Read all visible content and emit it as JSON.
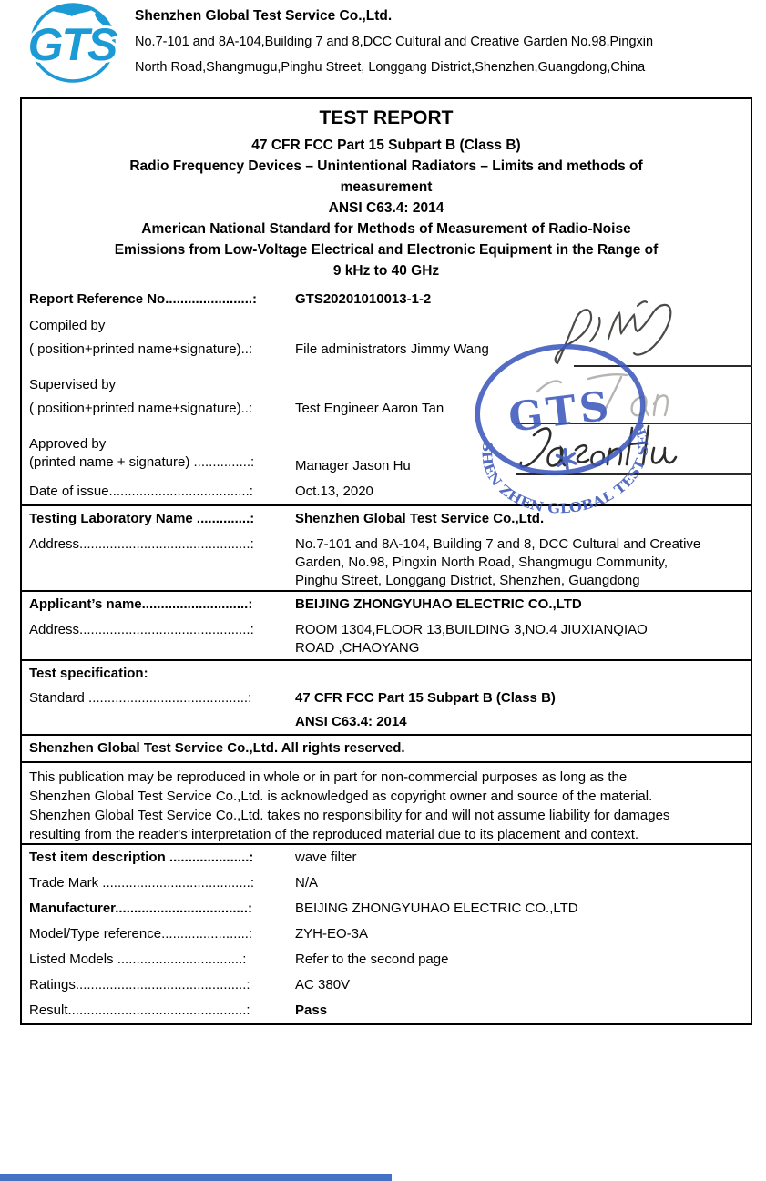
{
  "header": {
    "company": "Shenzhen Global Test Service Co.,Ltd.",
    "address_line1": "No.7-101 and 8A-104,Building 7 and 8,DCC Cultural and Creative Garden No.98,Pingxin",
    "address_line2": "North Road,Shangmugu,Pinghu Street, Longgang District,Shenzhen,Guangdong,China",
    "logo_text": "GTS",
    "logo_color": "#1b9ad6"
  },
  "title_block": {
    "main": "TEST REPORT",
    "sub_lines": [
      "47 CFR FCC Part 15 Subpart B (Class B)",
      "Radio Frequency Devices – Unintentional Radiators – Limits and methods of",
      "measurement",
      "ANSI C63.4: 2014",
      "American National Standard for Methods of Measurement of Radio-Noise",
      "Emissions from Low-Voltage Electrical and Electronic Equipment in the Range of",
      "9 kHz to 40 GHz"
    ]
  },
  "fields": [
    {
      "id": "report-reference-no",
      "label": "Report Reference No.......................:",
      "value": "GTS20201010013-1-2",
      "lb": true,
      "vb": true
    },
    {
      "id": "compiled-by",
      "label": "Compiled by",
      "label2": "( position+printed name+signature)..:",
      "value": "File administrators Jimmy Wang",
      "cls": "sig65"
    },
    {
      "id": "supervised-by",
      "label": "Supervised by",
      "label2": "( position+printed name+signature)..:",
      "value": "Test Engineer  Aaron Tan",
      "cls": "sig65"
    },
    {
      "id": "approved-by",
      "label": "Approved by",
      "label2": "(printed name + signature) ...............:",
      "value": "Manager Jason Hu",
      "cls": "sig53"
    },
    {
      "id": "date-of-issue",
      "label": "Date of issue.....................................:",
      "value": "Oct.13, 2020"
    },
    {
      "id": "testing-laboratory-name",
      "label": "Testing Laboratory Name ..............:",
      "value": "Shenzhen Global Test Service Co.,Ltd.",
      "lb": true,
      "vb": true,
      "rule": true
    },
    {
      "id": "laboratory-address",
      "label": "Address.............................................:",
      "value": [
        "No.7-101 and 8A-104, Building 7 and 8, DCC Cultural and Creative",
        "Garden, No.98, Pingxin North Road, Shangmugu Community,",
        "Pinghu Street, Longgang District, Shenzhen, Guangdong"
      ],
      "cls": "h64"
    },
    {
      "id": "applicant-name",
      "label": "Applicant’s name............................:",
      "value": "BEIJING ZHONGYUHAO ELECTRIC CO.,LTD",
      "lb": true,
      "vb": true,
      "rule": true
    },
    {
      "id": "applicant-address",
      "label": "Address.............................................:",
      "value": [
        "ROOM 1304,FLOOR 13,BUILDING 3,NO.4 JIUXIANQIAO",
        "ROAD ,CHAOYANG"
      ],
      "cls": "h46"
    },
    {
      "id": "test-specification",
      "label": "Test specification:",
      "value": "",
      "lb": true,
      "rule": true
    },
    {
      "id": "standard",
      "label": "Standard ..........................................:",
      "value": [
        "47 CFR FCC Part 15 Subpart B (Class B)",
        "ANSI C63.4: 2014"
      ],
      "vb": true,
      "cls": "h52"
    },
    {
      "id": "rights-notice",
      "full": true,
      "bold": true,
      "rule": true,
      "text": "Shenzhen Global Test Service Co.,Ltd. All rights reserved."
    },
    {
      "id": "copyright-notice",
      "full": true,
      "rule": true,
      "cls": "h90",
      "lines": [
        "This publication may be reproduced in whole or in part for non-commercial purposes as long as the",
        "Shenzhen Global Test Service Co.,Ltd. is acknowledged as copyright owner and source of the material.",
        "Shenzhen Global Test Service Co.,Ltd. takes no responsibility for and will not assume liability for damages",
        "resulting from the reader's interpretation of the reproduced material due to its placement and context."
      ]
    },
    {
      "id": "test-item-description",
      "label": "Test item description .....................:",
      "value": "wave filter",
      "lb": true,
      "rule": true
    },
    {
      "id": "trade-mark",
      "label": "Trade Mark .......................................:",
      "value": "N/A"
    },
    {
      "id": "manufacturer",
      "label": "Manufacturer...................................:",
      "value": "BEIJING ZHONGYUHAO ELECTRIC CO.,LTD",
      "lb": true
    },
    {
      "id": "model-type-reference",
      "label": "Model/Type reference.......................:",
      "value": "ZYH-EO-3A"
    },
    {
      "id": "listed-models",
      "label": "Listed Models  .................................:",
      "value": "Refer to the second page"
    },
    {
      "id": "ratings",
      "label": "Ratings.............................................:",
      "value": "AC 380V"
    },
    {
      "id": "result",
      "label": "Result...............................................:",
      "value": "Pass",
      "vb": true
    }
  ],
  "stamp": {
    "ring_text": "SHEN ZHEN GLOBAL TEST SERVICE CO.,LTD.",
    "center_text": "GTS",
    "color": "#3d58bb"
  },
  "signatures": [
    {
      "of": "Jimmy Wang"
    },
    {
      "of": "Aaron Tan"
    },
    {
      "of": "JasonHu"
    }
  ],
  "bottom_bar_color": "#4472c4"
}
